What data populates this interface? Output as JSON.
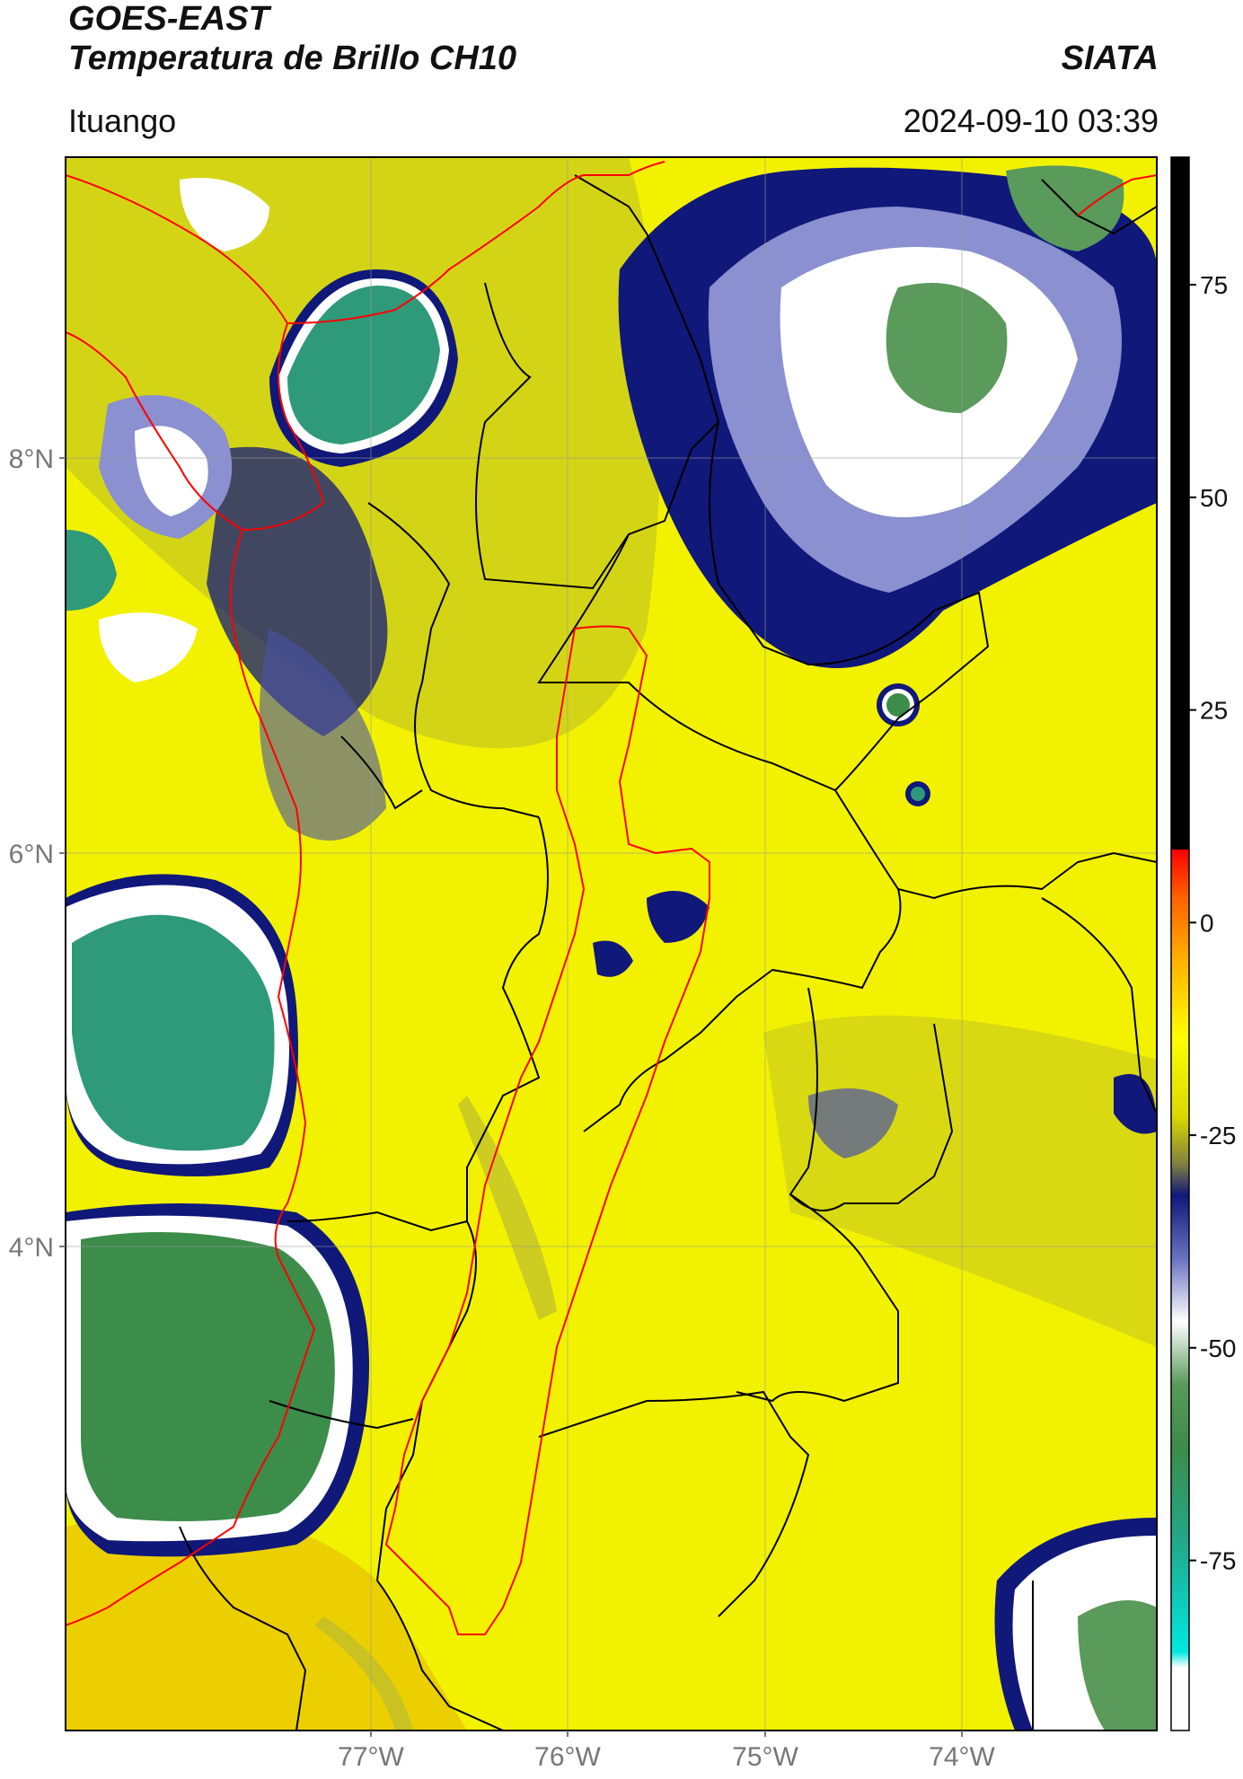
{
  "header": {
    "satellite": "GOES-EAST",
    "product": "Temperatura de Brillo CH10",
    "brand": "SIATA",
    "location": "Ituango",
    "datetime": "2024-09-10 03:39"
  },
  "map": {
    "lat_ticks": [
      "8°N",
      "6°N",
      "4°N"
    ],
    "lon_ticks": [
      "77°W",
      "76°W",
      "75°W",
      "74°W"
    ],
    "colors": {
      "background": "#f2f200",
      "warm": "#e6c800",
      "olive": "#9a9a30",
      "cold_blue": "#10187a",
      "mid_blue": "#6a72c0",
      "white": "#ffffff",
      "green": "#3c8c4a",
      "teal": "#22a88a",
      "border_red": "#ff0000",
      "border_black": "#000000"
    }
  },
  "colorbar": {
    "ticks": [
      "75",
      "50",
      "25",
      "0",
      "-25",
      "-50",
      "-75"
    ],
    "tick_values": [
      75,
      50,
      25,
      0,
      -25,
      -50,
      -75
    ],
    "range": [
      -95,
      90
    ]
  }
}
